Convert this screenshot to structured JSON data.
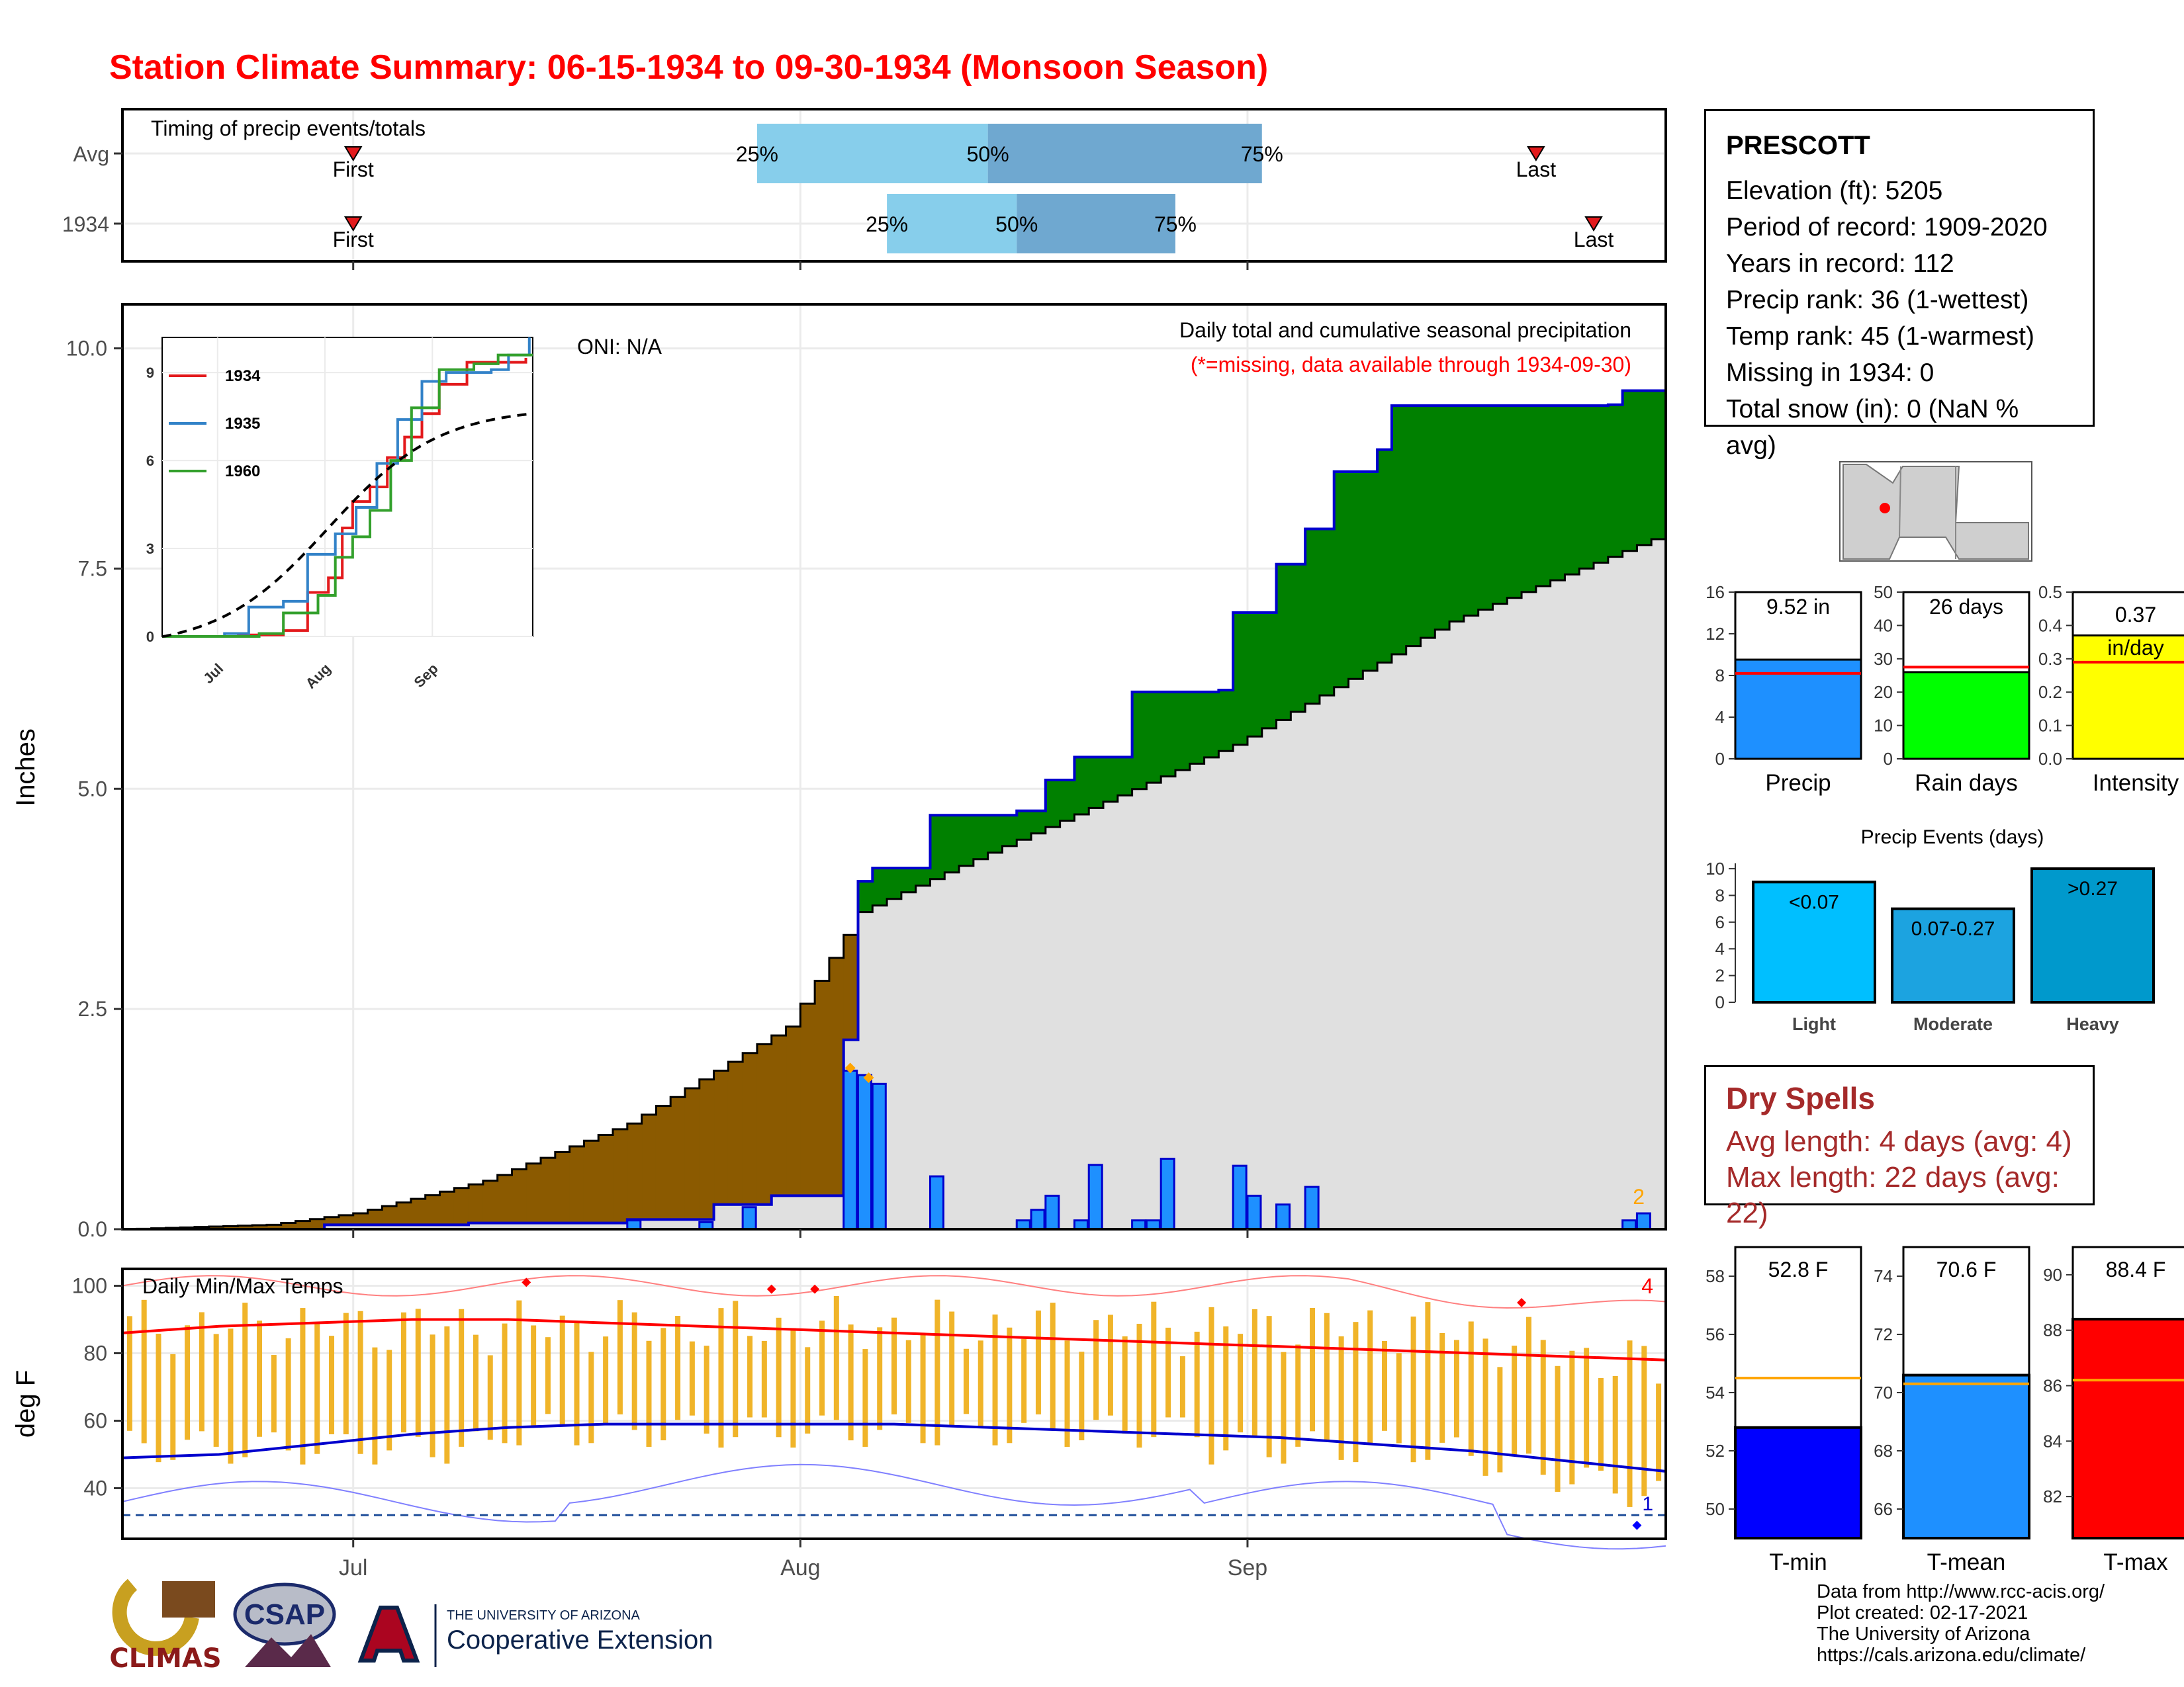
{
  "title": "Station Climate Summary: 06-15-1934 to 09-30-1934 (Monsoon Season)",
  "timing": {
    "label": "Timing of precip events/totals",
    "rows": [
      {
        "name": "Avg",
        "first": "First",
        "last": "Last",
        "p25": "25%",
        "p50": "50%",
        "p75": "75%"
      },
      {
        "name": "1934",
        "first": "First",
        "last": "Last",
        "p25": "25%",
        "p50": "50%",
        "p75": "75%"
      }
    ]
  },
  "main_chart": {
    "oni": "ONI: N/A",
    "note1": "Daily total and cumulative seasonal precipitation",
    "note2": "(*=missing, data available through 1934-09-30)",
    "ylabel": "Inches",
    "yticks": [
      "0.0",
      "2.5",
      "5.0",
      "7.5",
      "10.0"
    ],
    "corner_count": "2",
    "inset_legend": [
      "1934",
      "1935",
      "1960"
    ],
    "inset_yticks": [
      "0",
      "3",
      "6",
      "9"
    ],
    "inset_xticks": [
      "Jul",
      "Aug",
      "Sep"
    ]
  },
  "temp_chart": {
    "label": "Daily Min/Max Temps",
    "ylabel": "deg F",
    "yticks": [
      "40",
      "60",
      "80",
      "100"
    ],
    "count_high": "4",
    "count_low": "1",
    "xticks": [
      "Jul",
      "Aug",
      "Sep"
    ]
  },
  "station": {
    "name": "PRESCOTT",
    "lines": [
      "Elevation (ft): 5205",
      "Period of record: 1909-2020",
      "Years in record: 112",
      "Precip rank: 36 (1-wettest)",
      "Temp rank: 45 (1-warmest)",
      "Missing in 1934: 0",
      "Total snow (in): 0 (NaN % avg)"
    ]
  },
  "mini_bars": [
    {
      "label": "Precip",
      "value_text": "9.52 in",
      "value": 9.52,
      "avg": 8.2,
      "ymax": 16,
      "ticks": [
        "0",
        "4",
        "8",
        "12",
        "16"
      ],
      "color": "#1e90ff"
    },
    {
      "label": "Rain days",
      "value_text": "26 days",
      "value": 26,
      "avg": 27.5,
      "ymax": 50,
      "ticks": [
        "0",
        "10",
        "20",
        "30",
        "40",
        "50"
      ],
      "color": "#00ff00"
    },
    {
      "label": "Intensity",
      "value_text": "0.37 in/day",
      "value": 0.37,
      "avg": 0.29,
      "ymax": 0.5,
      "ticks": [
        "0.0",
        "0.1",
        "0.2",
        "0.3",
        "0.4",
        "0.5"
      ],
      "color": "#ffff00"
    }
  ],
  "events": {
    "title": "Precip Events (days)",
    "categories": [
      "Light",
      "Moderate",
      "Heavy"
    ],
    "bin_labels": [
      "<0.07",
      "0.07-0.27",
      ">0.27"
    ],
    "values": [
      9,
      7,
      10
    ],
    "ticks": [
      "0",
      "2",
      "4",
      "6",
      "8",
      "10"
    ],
    "colors": [
      "#00bfff",
      "#1ca3e0",
      "#0099cc"
    ]
  },
  "dry_spells": {
    "title": "Dry Spells",
    "avg_line": "Avg length: 4 days (avg: 4)",
    "max_line": "Max length: 22 days (avg: 22)"
  },
  "temp_bars": [
    {
      "label": "T-min",
      "value_text": "52.8 F",
      "value": 52.8,
      "avg": 54.5,
      "ymin": 49,
      "ymax": 59,
      "ticks": [
        "50",
        "52",
        "54",
        "56",
        "58"
      ],
      "color": "#0000ff"
    },
    {
      "label": "T-mean",
      "value_text": "70.6 F",
      "value": 70.6,
      "avg": 70.3,
      "ymin": 65,
      "ymax": 75,
      "ticks": [
        "66",
        "68",
        "70",
        "72",
        "74"
      ],
      "color": "#1e90ff"
    },
    {
      "label": "T-max",
      "value_text": "88.4 F",
      "value": 88.4,
      "avg": 86.2,
      "ymin": 80.5,
      "ymax": 91,
      "ticks": [
        "82",
        "84",
        "86",
        "88",
        "90"
      ],
      "color": "#ff0000"
    }
  ],
  "footer": {
    "credits": [
      "Data from http://www.rcc-acis.org/",
      "Plot created: 02-17-2021",
      "The University of Arizona",
      "https://cals.arizona.edu/climate/"
    ],
    "logo_climas": "CLIMAS",
    "logo_csap": "CSAP",
    "logo_ua_small": "THE UNIVERSITY OF ARIZONA",
    "logo_ua_big": "Cooperative Extension"
  },
  "chart_data": [
    {
      "type": "area",
      "title": "Daily total and cumulative seasonal precipitation",
      "ylabel": "Inches",
      "ylim": [
        0,
        10.5
      ],
      "x_range": [
        "1934-06-15",
        "1934-09-30"
      ],
      "cumulative_1934": [
        [
          "06-15",
          0
        ],
        [
          "06-29",
          0.05
        ],
        [
          "07-09",
          0.07
        ],
        [
          "07-20",
          0.11
        ],
        [
          "07-26",
          0.28
        ],
        [
          "07-30",
          0.38
        ],
        [
          "08-03",
          0.38
        ],
        [
          "08-04",
          2.15
        ],
        [
          "08-05",
          3.95
        ],
        [
          "08-06",
          4.1
        ],
        [
          "08-09",
          4.1
        ],
        [
          "08-10",
          4.7
        ],
        [
          "08-16",
          4.75
        ],
        [
          "08-18",
          5.1
        ],
        [
          "08-20",
          5.36
        ],
        [
          "08-23",
          5.36
        ],
        [
          "08-24",
          6.1
        ],
        [
          "08-30",
          6.12
        ],
        [
          "08-31",
          7.0
        ],
        [
          "09-03",
          7.55
        ],
        [
          "09-05",
          7.95
        ],
        [
          "09-07",
          8.6
        ],
        [
          "09-10",
          8.85
        ],
        [
          "09-11",
          9.35
        ],
        [
          "09-26",
          9.36
        ],
        [
          "09-27",
          9.52
        ],
        [
          "09-30",
          9.52
        ]
      ],
      "cumulative_avg": [
        [
          "06-15",
          0.0
        ],
        [
          "06-25",
          0.05
        ],
        [
          "07-01",
          0.18
        ],
        [
          "07-10",
          0.55
        ],
        [
          "07-20",
          1.2
        ],
        [
          "07-31",
          2.3
        ],
        [
          "08-05",
          3.6
        ],
        [
          "08-15",
          4.35
        ],
        [
          "08-31",
          5.5
        ],
        [
          "09-15",
          6.9
        ],
        [
          "09-30",
          7.9
        ]
      ],
      "daily_1934": [
        [
          "07-20",
          0.1
        ],
        [
          "07-25",
          0.08
        ],
        [
          "07-28",
          0.25
        ],
        [
          "08-04",
          1.8
        ],
        [
          "08-05",
          1.75
        ],
        [
          "08-06",
          1.65
        ],
        [
          "08-10",
          0.6
        ],
        [
          "08-16",
          0.1
        ],
        [
          "08-17",
          0.22
        ],
        [
          "08-18",
          0.38
        ],
        [
          "08-20",
          0.1
        ],
        [
          "08-21",
          0.73
        ],
        [
          "08-24",
          0.1
        ],
        [
          "08-25",
          0.1
        ],
        [
          "08-26",
          0.8
        ],
        [
          "08-31",
          0.72
        ],
        [
          "09-01",
          0.38
        ],
        [
          "09-03",
          0.28
        ],
        [
          "09-05",
          0.48
        ],
        [
          "09-27",
          0.1
        ],
        [
          "09-28",
          0.18
        ]
      ],
      "inset": {
        "type": "line",
        "series": [
          "1934",
          "1935",
          "1960"
        ],
        "ylim": [
          0,
          10.2
        ]
      }
    },
    {
      "type": "bar",
      "title": "Daily Min/Max Temps",
      "ylabel": "deg F",
      "ylim": [
        25,
        105
      ],
      "avg_max": [
        86,
        88,
        89,
        90,
        90,
        89,
        88,
        87,
        86,
        85,
        84,
        83,
        82,
        81,
        80,
        79,
        78
      ],
      "avg_min": [
        49,
        50,
        53,
        56,
        58,
        59,
        59,
        59,
        59,
        58,
        57,
        56,
        55,
        53,
        51,
        48,
        45
      ],
      "freeze_line": 32
    }
  ]
}
